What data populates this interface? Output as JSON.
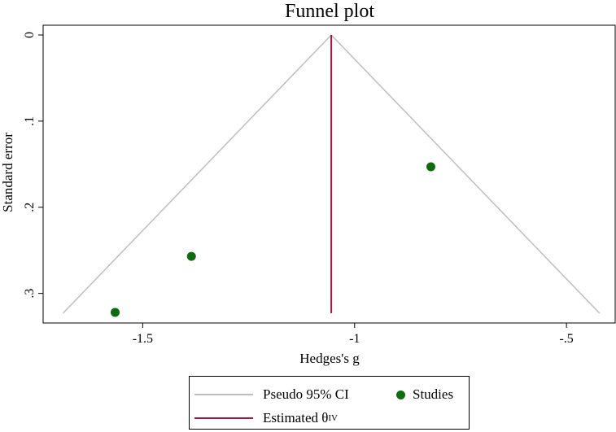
{
  "chart_data": {
    "type": "scatter",
    "title": "Funnel plot",
    "xlabel": "Hedges's g",
    "ylabel": "Standard error",
    "xlim": [
      -1.71,
      -0.41
    ],
    "ylim": [
      0,
      0.323
    ],
    "y_reversed": true,
    "xticks": [
      -1.5,
      -1,
      -0.5
    ],
    "xtick_labels": [
      "-1.5",
      "-1",
      "-.5"
    ],
    "yticks": [
      0,
      0.1,
      0.2,
      0.3
    ],
    "ytick_labels": [
      "0",
      ".1",
      ".2",
      ".3"
    ],
    "estimate": -1.055,
    "ci_level": 0.95,
    "se_max": 0.323,
    "studies": [
      {
        "x": -1.565,
        "y": 0.322
      },
      {
        "x": -1.385,
        "y": 0.257
      },
      {
        "x": -0.82,
        "y": 0.153
      }
    ],
    "colors": {
      "ci_lines": "#bdbdbd",
      "estimate_line": "#a3173f",
      "studies": "#0e6b0e"
    },
    "legend": {
      "placement": "bottom",
      "entries": [
        {
          "label": "Pseudo 95% CI",
          "symbol": "line",
          "color": "#bdbdbd"
        },
        {
          "label": "Studies",
          "symbol": "dot",
          "color": "#0e6b0e"
        },
        {
          "label": "Estimated θ",
          "superscript": "IV",
          "symbol": "line",
          "color": "#a3173f"
        }
      ]
    }
  }
}
